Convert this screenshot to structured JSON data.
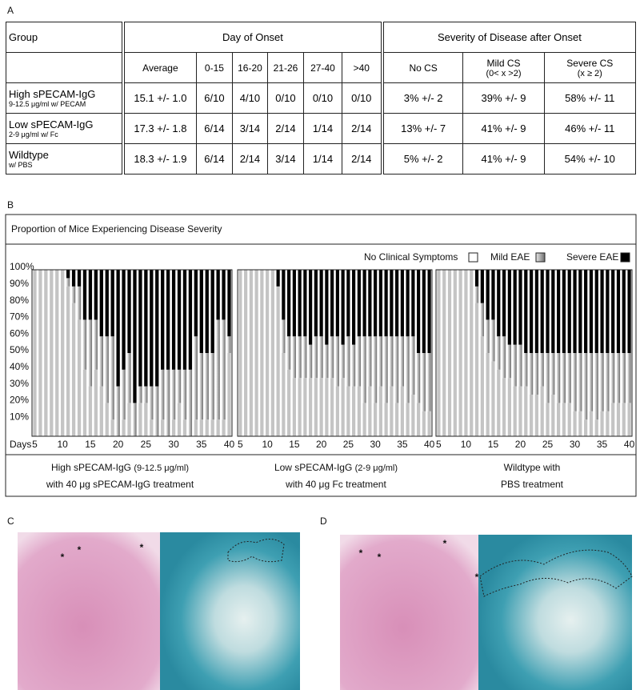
{
  "panel_labels": {
    "a": "A",
    "b": "B",
    "c": "C",
    "d": "D"
  },
  "table": {
    "group_header": "Group",
    "onset_header": "Day of Onset",
    "severity_header": "Severity of Disease after Onset",
    "columns": [
      {
        "title": "Average"
      },
      {
        "title": "0-15"
      },
      {
        "title": "16-20"
      },
      {
        "title": "21-26"
      },
      {
        "title": "27-40"
      },
      {
        "title": ">40"
      },
      {
        "title": "No CS"
      },
      {
        "title": "Mild CS",
        "sub": "(0< x >2)"
      },
      {
        "title": "Severe CS",
        "sub": "(x ≥ 2)"
      }
    ],
    "rows": [
      {
        "group": "High sPECAM-IgG",
        "sub": "9-12.5 μg/ml w/ PECAM",
        "cells": [
          "15.1 +/- 1.0",
          "6/10",
          "4/10",
          "0/10",
          "0/10",
          "0/10",
          "3% +/- 2",
          "39% +/- 9",
          "58% +/- 11"
        ]
      },
      {
        "group": "Low sPECAM-IgG",
        "sub": "2-9 μg/ml w/ Fc",
        "cells": [
          "17.3 +/- 1.8",
          "6/14",
          "3/14",
          "2/14",
          "1/14",
          "2/14",
          "13% +/- 7",
          "41% +/- 9",
          "46% +/- 11"
        ]
      },
      {
        "group": "Wildtype",
        "sub": "w/ PBS",
        "cells": [
          "18.3 +/- 1.9",
          "6/14",
          "2/14",
          "3/14",
          "1/14",
          "2/14",
          "5% +/- 2",
          "41% +/- 9",
          "54% +/- 10"
        ]
      }
    ]
  },
  "figure_b": {
    "title": "Proportion of Mice Experiencing Disease Severity",
    "captions": [
      {
        "main": "High sPECAM-IgG",
        "small": "(9-12.5 μg/ml)",
        "line2": "with 40 μg sPECAM-IgG treatment"
      },
      {
        "main": "Low sPECAM-IgG",
        "small": "(2-9 μg/ml)",
        "line2": "with 40 μg Fc treatment"
      },
      {
        "main": "Wildtype with",
        "line2": "PBS treatment"
      }
    ]
  },
  "chart_data": [
    {
      "type": "stacked_bar",
      "xlabel": "Days",
      "x": [
        5,
        6,
        7,
        8,
        9,
        10,
        11,
        12,
        13,
        14,
        15,
        16,
        17,
        18,
        19,
        20,
        21,
        22,
        23,
        24,
        25,
        26,
        27,
        28,
        29,
        30,
        31,
        32,
        33,
        34,
        35,
        36,
        37,
        38,
        39,
        40
      ],
      "xlim": [
        4.5,
        40.5
      ],
      "xticks": [
        5,
        10,
        15,
        20,
        25,
        30,
        35,
        40
      ],
      "ylim": [
        0,
        100
      ],
      "yticks": [
        {
          "value": 10,
          "label": "10%"
        },
        {
          "value": 20,
          "label": "20%"
        },
        {
          "value": 30,
          "label": "30%"
        },
        {
          "value": 40,
          "label": "40%"
        },
        {
          "value": 50,
          "label": "50%"
        },
        {
          "value": 60,
          "label": "60%"
        },
        {
          "value": 70,
          "label": "70%"
        },
        {
          "value": 80,
          "label": "80%"
        },
        {
          "value": 90,
          "label": "90%"
        },
        {
          "value": 100,
          "label": "100%"
        }
      ],
      "series": [
        {
          "name": "No Clinical Symptoms",
          "color": "#c4c4c4",
          "values": [
            100,
            100,
            100,
            100,
            100,
            100,
            90,
            80,
            70,
            40,
            30,
            40,
            30,
            20,
            10,
            0,
            10,
            20,
            0,
            20,
            20,
            10,
            0,
            10,
            0,
            10,
            20,
            10,
            0,
            10,
            10,
            10,
            10,
            10,
            10,
            50
          ]
        },
        {
          "name": "Mild EAE",
          "color": "#6e6e6e",
          "values": [
            0,
            0,
            0,
            0,
            0,
            0,
            5,
            10,
            20,
            30,
            40,
            30,
            30,
            40,
            50,
            30,
            30,
            30,
            20,
            10,
            10,
            20,
            30,
            30,
            40,
            30,
            20,
            30,
            40,
            50,
            40,
            40,
            40,
            60,
            60,
            10
          ]
        },
        {
          "name": "Severe EAE",
          "color": "#000000",
          "values": [
            0,
            0,
            0,
            0,
            0,
            0,
            5,
            10,
            10,
            30,
            30,
            30,
            40,
            40,
            40,
            70,
            60,
            50,
            80,
            70,
            70,
            70,
            70,
            60,
            60,
            60,
            60,
            60,
            60,
            40,
            50,
            50,
            50,
            30,
            30,
            40
          ]
        }
      ]
    },
    {
      "type": "stacked_bar",
      "x": [
        5,
        6,
        7,
        8,
        9,
        10,
        11,
        12,
        13,
        14,
        15,
        16,
        17,
        18,
        19,
        20,
        21,
        22,
        23,
        24,
        25,
        26,
        27,
        28,
        29,
        30,
        31,
        32,
        33,
        34,
        35,
        36,
        37,
        38,
        39,
        40
      ],
      "xlim": [
        4.5,
        40.5
      ],
      "xticks": [
        5,
        10,
        15,
        20,
        25,
        30,
        35,
        40
      ],
      "ylim": [
        0,
        100
      ],
      "series": [
        {
          "values": [
            100,
            100,
            100,
            100,
            100,
            100,
            100,
            90,
            50,
            40,
            35,
            35,
            35,
            35,
            35,
            35,
            35,
            35,
            30,
            35,
            30,
            30,
            30,
            20,
            30,
            20,
            30,
            20,
            30,
            20,
            30,
            20,
            25,
            20,
            15,
            15
          ]
        },
        {
          "values": [
            0,
            0,
            0,
            0,
            0,
            0,
            0,
            0,
            20,
            20,
            25,
            25,
            25,
            20,
            25,
            25,
            20,
            25,
            30,
            20,
            30,
            25,
            30,
            40,
            30,
            40,
            30,
            40,
            30,
            40,
            30,
            40,
            35,
            30,
            35,
            35
          ]
        },
        {
          "values": [
            0,
            0,
            0,
            0,
            0,
            0,
            0,
            10,
            30,
            40,
            40,
            40,
            40,
            45,
            40,
            40,
            45,
            40,
            40,
            45,
            40,
            45,
            40,
            40,
            40,
            40,
            40,
            40,
            40,
            40,
            40,
            40,
            40,
            50,
            50,
            50
          ]
        }
      ]
    },
    {
      "type": "stacked_bar",
      "x": [
        5,
        6,
        7,
        8,
        9,
        10,
        11,
        12,
        13,
        14,
        15,
        16,
        17,
        18,
        19,
        20,
        21,
        22,
        23,
        24,
        25,
        26,
        27,
        28,
        29,
        30,
        31,
        32,
        33,
        34,
        35,
        36,
        37,
        38,
        39,
        40
      ],
      "xlim": [
        4.5,
        40.5
      ],
      "xticks": [
        5,
        10,
        15,
        20,
        25,
        30,
        35,
        40
      ],
      "ylim": [
        0,
        100
      ],
      "series": [
        {
          "values": [
            100,
            100,
            100,
            100,
            100,
            100,
            100,
            80,
            60,
            50,
            45,
            40,
            35,
            35,
            30,
            30,
            30,
            25,
            25,
            30,
            20,
            25,
            20,
            20,
            20,
            15,
            15,
            10,
            15,
            10,
            15,
            15,
            20,
            20,
            20,
            20
          ]
        },
        {
          "values": [
            0,
            0,
            0,
            0,
            0,
            0,
            0,
            10,
            20,
            20,
            25,
            20,
            25,
            20,
            25,
            25,
            20,
            25,
            25,
            20,
            30,
            25,
            30,
            30,
            30,
            35,
            35,
            40,
            35,
            40,
            35,
            35,
            30,
            30,
            30,
            30
          ]
        },
        {
          "values": [
            0,
            0,
            0,
            0,
            0,
            0,
            0,
            10,
            20,
            30,
            30,
            40,
            40,
            45,
            45,
            45,
            50,
            50,
            50,
            50,
            50,
            50,
            50,
            50,
            50,
            50,
            50,
            50,
            50,
            50,
            50,
            50,
            50,
            50,
            50,
            50
          ]
        }
      ]
    }
  ],
  "panel_c": {
    "markers": [
      "*",
      "*",
      "*"
    ]
  },
  "panel_d": {
    "markers": [
      "*",
      "*",
      "*",
      "*"
    ]
  }
}
